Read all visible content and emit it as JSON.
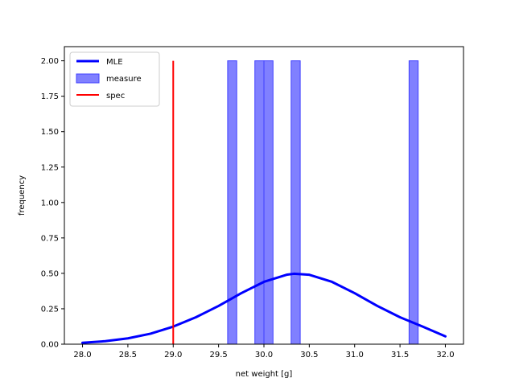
{
  "chart_data": {
    "type": "bar",
    "xlabel": "net weight [g]",
    "ylabel": "frequency",
    "xlim": [
      27.8,
      32.2
    ],
    "ylim": [
      0,
      2.1
    ],
    "xticks": [
      "28.0",
      "28.5",
      "29.0",
      "29.5",
      "30.0",
      "30.5",
      "31.0",
      "31.5",
      "32.0"
    ],
    "yticks": [
      "0.00",
      "0.25",
      "0.50",
      "0.75",
      "1.00",
      "1.25",
      "1.50",
      "1.75",
      "2.00"
    ],
    "legend_position": "top-left",
    "legend": [
      "MLE",
      "measure",
      "spec"
    ],
    "series": [
      {
        "name": "measure",
        "kind": "histogram",
        "color": "#8080ff",
        "edge_color": "#4040ff",
        "bin_width": 0.1,
        "bins": [
          {
            "x": 29.6,
            "value": 2
          },
          {
            "x": 29.9,
            "value": 2
          },
          {
            "x": 30.0,
            "value": 2
          },
          {
            "x": 30.3,
            "value": 2
          },
          {
            "x": 31.6,
            "value": 2
          }
        ]
      },
      {
        "name": "MLE",
        "kind": "line",
        "color": "#0000ff",
        "x": [
          28.0,
          28.25,
          28.5,
          28.75,
          29.0,
          29.25,
          29.5,
          29.75,
          30.0,
          30.25,
          30.33,
          30.5,
          30.75,
          31.0,
          31.25,
          31.5,
          31.75,
          32.0
        ],
        "values": [
          0.01,
          0.021,
          0.041,
          0.074,
          0.124,
          0.19,
          0.27,
          0.36,
          0.44,
          0.49,
          0.497,
          0.49,
          0.44,
          0.36,
          0.27,
          0.19,
          0.124,
          0.055
        ]
      },
      {
        "name": "spec",
        "kind": "vline",
        "color": "#ff0000",
        "x": 29.0,
        "y_range": [
          0,
          2.0
        ]
      }
    ]
  }
}
